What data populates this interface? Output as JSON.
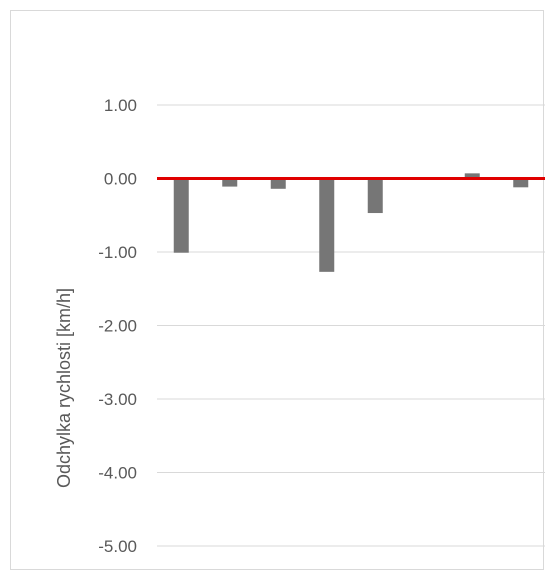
{
  "chart_data": {
    "type": "bar",
    "title": "",
    "xlabel": "",
    "ylabel": "Odchylka rychlosti [km/h]",
    "ylim": [
      -5.0,
      1.0
    ],
    "yticks": [
      "1.00",
      "0.00",
      "-1.00",
      "-2.00",
      "-3.00",
      "-4.00",
      "-5.00"
    ],
    "ytick_values": [
      1,
      0,
      -1,
      -2,
      -3,
      -4,
      -5
    ],
    "grid": true,
    "legend": "none",
    "categories": [
      "",
      "",
      "",
      "",
      "",
      "",
      "",
      ""
    ],
    "series": [
      {
        "values": [
          -1.01,
          -0.11,
          -0.14,
          -1.27,
          -0.47,
          0.01,
          0.07,
          -0.12
        ]
      }
    ],
    "reference_line": {
      "value": 0.0
    },
    "colors": {
      "bar": "#767676",
      "reference_line": "#e00000",
      "grid": "#d9d9d9",
      "text": "#595959"
    }
  }
}
